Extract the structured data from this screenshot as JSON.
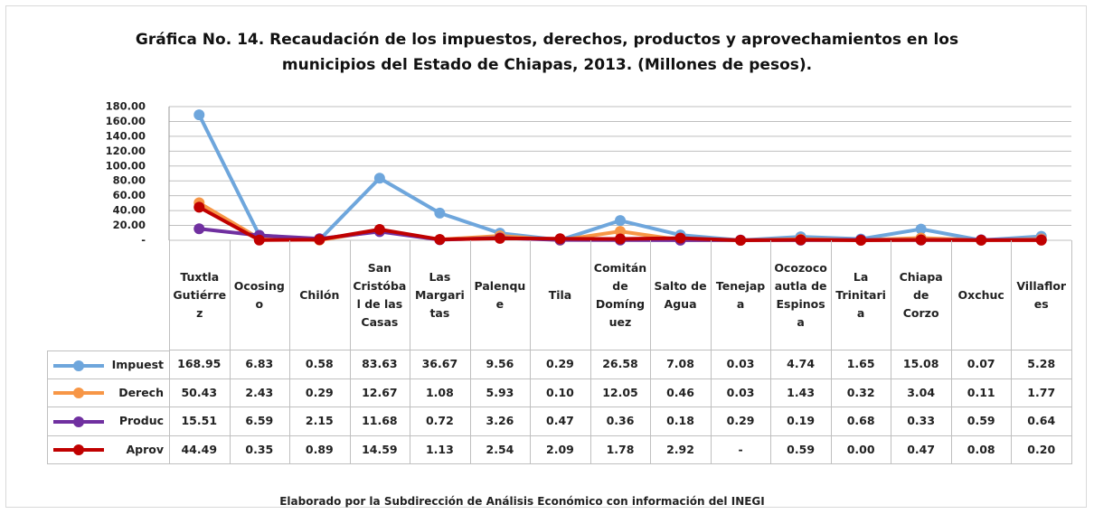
{
  "chart_data": {
    "type": "line",
    "title": [
      "Gráfica No. 14. Recaudación de los impuestos, derechos, productos y aprovechamientos en los",
      "municipios del Estado de Chiapas, 2013. (Millones de pesos)."
    ],
    "categories": [
      "Tuxtla Gutiérrez",
      "Ocosingo",
      "Chilón",
      "San Cristóbal de las Casas",
      "Las Margaritas",
      "Palenque",
      "Tila",
      "Comitán de Domínguez",
      "Salto de Agua",
      "Tenejapa",
      "Ocozocoautla de Espinosa",
      "La Trinitaria",
      "Chiapa de Corzo",
      "Oxchuc",
      "Villaflores"
    ],
    "series": [
      {
        "name": "Impuest",
        "color": "#6ea6dc",
        "values": [
          168.95,
          6.83,
          0.58,
          83.63,
          36.67,
          9.56,
          0.29,
          26.58,
          7.08,
          0.03,
          4.74,
          1.65,
          15.08,
          0.07,
          5.28
        ],
        "value_labels": [
          "168.95",
          "6.83",
          "0.58",
          "83.63",
          "36.67",
          "9.56",
          "0.29",
          "26.58",
          "7.08",
          "0.03",
          "4.74",
          "1.65",
          "15.08",
          "0.07",
          "5.28"
        ]
      },
      {
        "name": "Derech",
        "color": "#f79646",
        "values": [
          50.43,
          2.43,
          0.29,
          12.67,
          1.08,
          5.93,
          0.1,
          12.05,
          0.46,
          0.03,
          1.43,
          0.32,
          3.04,
          0.11,
          1.77
        ],
        "value_labels": [
          "50.43",
          "2.43",
          "0.29",
          "12.67",
          "1.08",
          "5.93",
          "0.10",
          "12.05",
          "0.46",
          "0.03",
          "1.43",
          "0.32",
          "3.04",
          "0.11",
          "1.77"
        ]
      },
      {
        "name": "Produc",
        "color": "#7030a0",
        "values": [
          15.51,
          6.59,
          2.15,
          11.68,
          0.72,
          3.26,
          0.47,
          0.36,
          0.18,
          0.29,
          0.19,
          0.68,
          0.33,
          0.59,
          0.64
        ],
        "value_labels": [
          "15.51",
          "6.59",
          "2.15",
          "11.68",
          "0.72",
          "3.26",
          "0.47",
          "0.36",
          "0.18",
          "0.29",
          "0.19",
          "0.68",
          "0.33",
          "0.59",
          "0.64"
        ]
      },
      {
        "name": "Aprov",
        "color": "#c00000",
        "values": [
          44.49,
          0.35,
          0.89,
          14.59,
          1.13,
          2.54,
          2.09,
          1.78,
          2.92,
          0,
          0.59,
          0,
          0.47,
          0.08,
          0.2
        ],
        "value_labels": [
          "44.49",
          "0.35",
          "0.89",
          "14.59",
          "1.13",
          "2.54",
          "2.09",
          "1.78",
          "2.92",
          "-",
          "0.59",
          "0.00",
          "0.47",
          "0.08",
          "0.20"
        ]
      }
    ],
    "ylim": [
      0,
      180
    ],
    "yticks": [
      {
        "value": 0,
        "label": "-"
      },
      {
        "value": 20,
        "label": "20.00"
      },
      {
        "value": 40,
        "label": "40.00"
      },
      {
        "value": 60,
        "label": "60.00"
      },
      {
        "value": 80,
        "label": "80.00"
      },
      {
        "value": 100,
        "label": "100.00"
      },
      {
        "value": 120,
        "label": "120.00"
      },
      {
        "value": 140,
        "label": "140.00"
      },
      {
        "value": 160,
        "label": "160.00"
      },
      {
        "value": 180,
        "label": "180.00"
      }
    ],
    "grid": true,
    "source": "Elaborado por la Subdirección de Análisis Económico con información del INEGI"
  }
}
